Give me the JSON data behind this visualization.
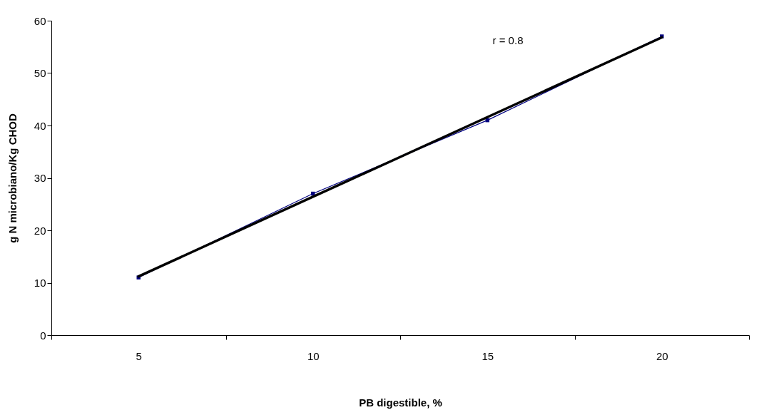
{
  "chart_data": {
    "type": "line",
    "xlabel": "PB digestible, %",
    "ylabel": "g N microbiano/Kg CHOD",
    "categories": [
      "5",
      "10",
      "15",
      "20"
    ],
    "series": [
      {
        "color": "#000080",
        "values": [
          11,
          27,
          41,
          57
        ],
        "marker": "square"
      },
      {
        "type": "line",
        "color": "#000000",
        "values": [
          11.2,
          26.4,
          41.6,
          56.8
        ],
        "marker": "none"
      }
    ],
    "ylim": [
      0,
      60
    ],
    "yticks": [
      0,
      10,
      20,
      30,
      40,
      50,
      60
    ],
    "grid": false,
    "annotations": [
      "r = 0.8"
    ]
  }
}
